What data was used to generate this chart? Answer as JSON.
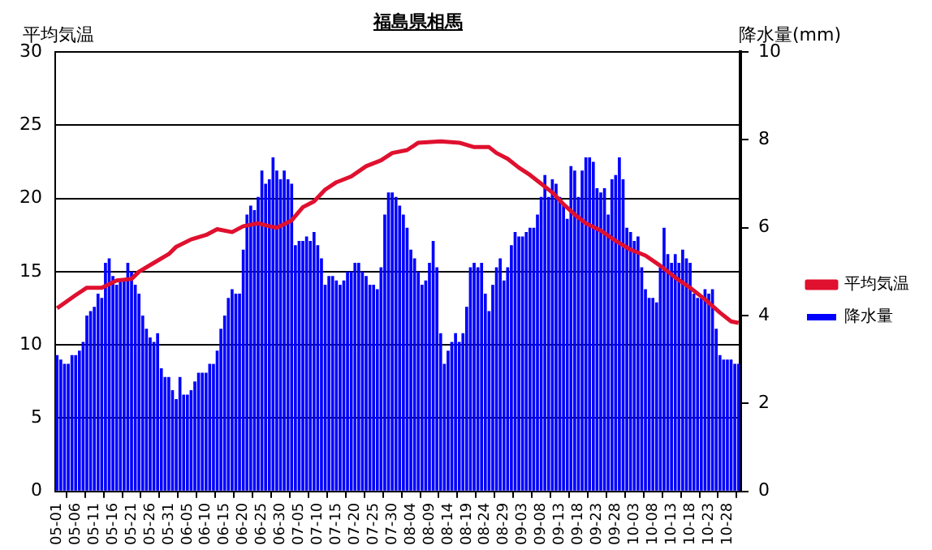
{
  "chart_data": {
    "type": "bar",
    "title": "福島県相馬",
    "ylabel": "平均気温",
    "y2label": "降水量(mm)",
    "x": [
      "--05-01",
      "--05-02",
      "--05-03",
      "--05-04",
      "--05-05",
      "--05-06",
      "--05-07",
      "--05-08",
      "--05-09",
      "--05-10",
      "--05-11",
      "--05-12",
      "--05-13",
      "--05-14",
      "--05-15",
      "--05-16",
      "--05-17",
      "--05-18",
      "--05-19",
      "--05-20",
      "--05-21",
      "--05-22",
      "--05-23",
      "--05-24",
      "--05-25",
      "--05-26",
      "--05-27",
      "--05-28",
      "--05-29",
      "--05-30",
      "--05-31",
      "--06-01",
      "--06-02",
      "--06-03",
      "--06-04",
      "--06-05",
      "--06-06",
      "--06-07",
      "--06-08",
      "--06-09",
      "--06-10",
      "--06-11",
      "--06-12",
      "--06-13",
      "--06-14",
      "--06-15",
      "--06-16",
      "--06-17",
      "--06-18",
      "--06-19",
      "--06-20",
      "--06-21",
      "--06-22",
      "--06-23",
      "--06-24",
      "--06-25",
      "--06-26",
      "--06-27",
      "--06-28",
      "--06-29",
      "--06-30",
      "--07-01",
      "--07-02",
      "--07-03",
      "--07-04",
      "--07-05",
      "--07-06",
      "--07-07",
      "--07-08",
      "--07-09",
      "--07-10",
      "--07-11",
      "--07-12",
      "--07-13",
      "--07-14",
      "--07-15",
      "--07-16",
      "--07-17",
      "--07-18",
      "--07-19",
      "--07-20",
      "--07-21",
      "--07-22",
      "--07-23",
      "--07-24",
      "--07-25",
      "--07-26",
      "--07-27",
      "--07-28",
      "--07-29",
      "--07-30",
      "--07-31",
      "--08-01",
      "--08-02",
      "--08-03",
      "--08-04",
      "--08-05",
      "--08-06",
      "--08-07",
      "--08-08",
      "--08-09",
      "--08-10",
      "--08-11",
      "--08-12",
      "--08-13",
      "--08-14",
      "--08-15",
      "--08-16",
      "--08-17",
      "--08-18",
      "--08-19",
      "--08-20",
      "--08-21",
      "--08-22",
      "--08-23",
      "--08-24",
      "--08-25",
      "--08-26",
      "--08-27",
      "--08-28",
      "--08-29",
      "--08-30",
      "--08-31",
      "--09-01",
      "--09-02",
      "--09-03",
      "--09-04",
      "--09-05",
      "--09-06",
      "--09-07",
      "--09-08",
      "--09-09",
      "--09-10",
      "--09-11",
      "--09-12",
      "--09-13",
      "--09-14",
      "--09-15",
      "--09-16",
      "--09-17",
      "--09-18",
      "--09-19",
      "--09-20",
      "--09-21",
      "--09-22",
      "--09-23",
      "--09-24",
      "--09-25",
      "--09-26",
      "--09-27",
      "--09-28",
      "--09-29",
      "--09-30",
      "--10-01",
      "--10-02",
      "--10-03",
      "--10-04",
      "--10-05",
      "--10-06",
      "--10-07",
      "--10-08",
      "--10-09",
      "--10-10",
      "--10-11",
      "--10-12",
      "--10-13",
      "--10-14",
      "--10-15",
      "--10-16",
      "--10-17",
      "--10-18",
      "--10-19",
      "--10-20",
      "--10-21",
      "--10-22",
      "--10-23",
      "--10-24",
      "--10-25",
      "--10-26",
      "--10-27",
      "--10-28",
      "--10-29",
      "--10-30",
      "--10-31"
    ],
    "series": [
      {
        "name": "平均気温",
        "type": "line",
        "color": "#e0102f",
        "x": [
          "--05-01",
          "--05-06",
          "--05-09",
          "--05-13",
          "--05-17",
          "--05-21",
          "--05-23",
          "--05-27",
          "--05-31",
          "--06-02",
          "--06-06",
          "--06-10",
          "--06-13",
          "--06-17",
          "--06-20",
          "--06-24",
          "--06-27",
          "--06-29",
          "--07-03",
          "--07-06",
          "--07-09",
          "--07-12",
          "--07-15",
          "--07-19",
          "--07-23",
          "--07-27",
          "--07-30",
          "--08-03",
          "--08-06",
          "--08-12",
          "--08-17",
          "--08-21",
          "--08-25",
          "--08-27",
          "--08-30",
          "--09-02",
          "--09-05",
          "--09-08",
          "--09-11",
          "--09-14",
          "--09-17",
          "--09-20",
          "--09-24",
          "--09-28",
          "--10-02",
          "--10-06",
          "--10-10",
          "--10-14",
          "--10-18",
          "--10-22",
          "--10-26",
          "--10-29",
          "--10-31"
        ],
        "values": [
          12.5,
          13.4,
          13.9,
          13.9,
          14.4,
          14.5,
          15.0,
          15.6,
          16.2,
          16.7,
          17.2,
          17.5,
          17.9,
          17.7,
          18.1,
          18.3,
          18.1,
          18.0,
          18.5,
          19.4,
          19.8,
          20.6,
          21.1,
          21.5,
          22.2,
          22.6,
          23.1,
          23.3,
          23.8,
          23.9,
          23.8,
          23.5,
          23.5,
          23.1,
          22.7,
          22.1,
          21.6,
          21.0,
          20.4,
          19.6,
          18.9,
          18.3,
          17.8,
          17.1,
          16.5,
          16.1,
          15.4,
          14.6,
          13.9,
          13.1,
          12.2,
          11.6,
          11.5
        ]
      },
      {
        "name": "降水量",
        "axis": "y2",
        "color": "#0000ff",
        "values": [
          3.1,
          3.0,
          2.9,
          2.9,
          3.1,
          3.1,
          3.2,
          3.4,
          4.0,
          4.1,
          4.2,
          4.5,
          4.4,
          5.2,
          5.3,
          4.9,
          4.7,
          4.8,
          4.8,
          5.2,
          5.0,
          4.7,
          4.5,
          4.0,
          3.7,
          3.5,
          3.4,
          3.6,
          2.8,
          2.6,
          2.6,
          2.3,
          2.1,
          2.6,
          2.2,
          2.2,
          2.3,
          2.5,
          2.7,
          2.7,
          2.7,
          2.9,
          2.9,
          3.2,
          3.7,
          4.0,
          4.4,
          4.6,
          4.5,
          4.5,
          5.5,
          6.3,
          6.5,
          6.4,
          6.7,
          7.3,
          7.0,
          7.1,
          7.6,
          7.3,
          7.1,
          7.3,
          7.1,
          7.0,
          5.6,
          5.7,
          5.7,
          5.8,
          5.7,
          5.9,
          5.6,
          5.3,
          4.7,
          4.9,
          4.9,
          4.8,
          4.7,
          4.8,
          5.0,
          5.0,
          5.2,
          5.2,
          5.0,
          4.9,
          4.7,
          4.7,
          4.6,
          5.1,
          6.3,
          6.8,
          6.8,
          6.7,
          6.5,
          6.3,
          6.0,
          5.5,
          5.3,
          5.0,
          4.7,
          4.8,
          5.2,
          5.7,
          5.1,
          3.6,
          2.9,
          3.2,
          3.4,
          3.6,
          3.4,
          3.6,
          4.2,
          5.1,
          5.2,
          5.1,
          5.2,
          4.5,
          4.1,
          4.7,
          5.1,
          5.3,
          4.8,
          5.1,
          5.6,
          5.9,
          5.8,
          5.8,
          5.9,
          6.0,
          6.0,
          6.3,
          6.7,
          7.2,
          6.7,
          7.1,
          7.0,
          6.7,
          6.5,
          6.2,
          7.4,
          7.3,
          6.7,
          7.3,
          7.6,
          7.6,
          7.5,
          6.9,
          6.8,
          6.9,
          6.3,
          7.1,
          7.2,
          7.6,
          7.1,
          6.0,
          5.9,
          5.7,
          5.8,
          5.1,
          4.6,
          4.4,
          4.4,
          4.3,
          5.1,
          6.0,
          5.4,
          5.2,
          5.4,
          5.2,
          5.5,
          5.3,
          5.2,
          4.5,
          4.4,
          4.4,
          4.6,
          4.5,
          4.6,
          3.7,
          3.1,
          3.0,
          3.0,
          3.0,
          2.9,
          2.9
        ]
      }
    ],
    "ylim": [
      0,
      30
    ],
    "yticks": [
      0,
      5,
      10,
      15,
      20,
      25,
      30
    ],
    "y2lim": [
      0,
      10
    ],
    "y2ticks": [
      0,
      2,
      4,
      6,
      8,
      10
    ],
    "xticks": [
      {
        "value": "--05-01",
        "label": "05-01"
      },
      {
        "value": "--05-06",
        "label": "05-06"
      },
      {
        "value": "--05-11",
        "label": "05-11"
      },
      {
        "value": "--05-16",
        "label": "05-16"
      },
      {
        "value": "--05-21",
        "label": "05-21"
      },
      {
        "value": "--05-26",
        "label": "05-26"
      },
      {
        "value": "--05-31",
        "label": "05-31"
      },
      {
        "value": "--06-05",
        "label": "06-05"
      },
      {
        "value": "--06-10",
        "label": "06-10"
      },
      {
        "value": "--06-15",
        "label": "06-15"
      },
      {
        "value": "--06-20",
        "label": "06-20"
      },
      {
        "value": "--06-25",
        "label": "06-25"
      },
      {
        "value": "--06-30",
        "label": "06-30"
      },
      {
        "value": "--07-05",
        "label": "07-05"
      },
      {
        "value": "--07-10",
        "label": "07-10"
      },
      {
        "value": "--07-15",
        "label": "07-15"
      },
      {
        "value": "--07-20",
        "label": "07-20"
      },
      {
        "value": "--07-25",
        "label": "07-25"
      },
      {
        "value": "--07-30",
        "label": "07-30"
      },
      {
        "value": "--08-04",
        "label": "08-04"
      },
      {
        "value": "--08-09",
        "label": "08-09"
      },
      {
        "value": "--08-14",
        "label": "08-14"
      },
      {
        "value": "--08-19",
        "label": "08-19"
      },
      {
        "value": "--08-24",
        "label": "08-24"
      },
      {
        "value": "--08-29",
        "label": "08-29"
      },
      {
        "value": "--09-03",
        "label": "09-03"
      },
      {
        "value": "--09-08",
        "label": "09-08"
      },
      {
        "value": "--09-13",
        "label": "09-13"
      },
      {
        "value": "--09-18",
        "label": "09-18"
      },
      {
        "value": "--09-23",
        "label": "09-23"
      },
      {
        "value": "--09-28",
        "label": "09-28"
      },
      {
        "value": "--10-03",
        "label": "10-03"
      },
      {
        "value": "--10-08",
        "label": "10-08"
      },
      {
        "value": "--10-13",
        "label": "10-13"
      },
      {
        "value": "--10-18",
        "label": "10-18"
      },
      {
        "value": "--10-23",
        "label": "10-23"
      },
      {
        "value": "--10-28",
        "label": "10-28"
      }
    ],
    "xlim": [
      "--04-30T12:00",
      "--10-31T12:00"
    ],
    "grid": "y",
    "legend": "right",
    "marker": "none",
    "line_style": "solid"
  }
}
